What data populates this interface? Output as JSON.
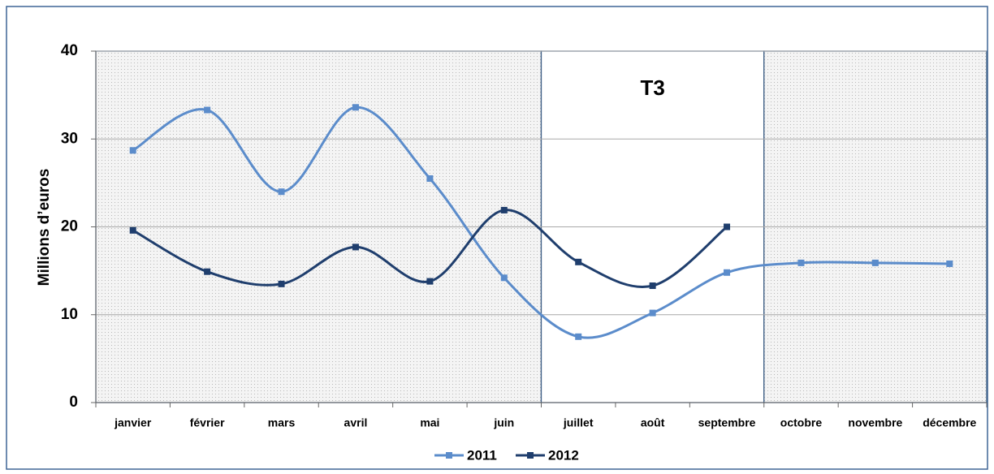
{
  "chart_data": {
    "type": "line",
    "ylabel": "Millions d’euros",
    "annotation": "T3",
    "categories": [
      "janvier",
      "février",
      "mars",
      "avril",
      "mai",
      "juin",
      "juillet",
      "août",
      "septembre",
      "octobre",
      "novembre",
      "décembre"
    ],
    "series": [
      {
        "name": "2011",
        "color": "#5b8ccb",
        "values": [
          28.7,
          33.3,
          24,
          33.6,
          25.5,
          14.2,
          7.5,
          10.2,
          14.8,
          15.9,
          15.9,
          15.8
        ]
      },
      {
        "name": "2012",
        "color": "#1f3e6d",
        "values": [
          19.6,
          14.9,
          13.5,
          17.7,
          13.8,
          21.9,
          16,
          13.3,
          20,
          null,
          null,
          null
        ]
      }
    ],
    "ylim": [
      0,
      40
    ],
    "yticks": [
      0,
      10,
      20,
      30,
      40
    ],
    "grid": true,
    "legend": "bottom",
    "smooth": true
  }
}
